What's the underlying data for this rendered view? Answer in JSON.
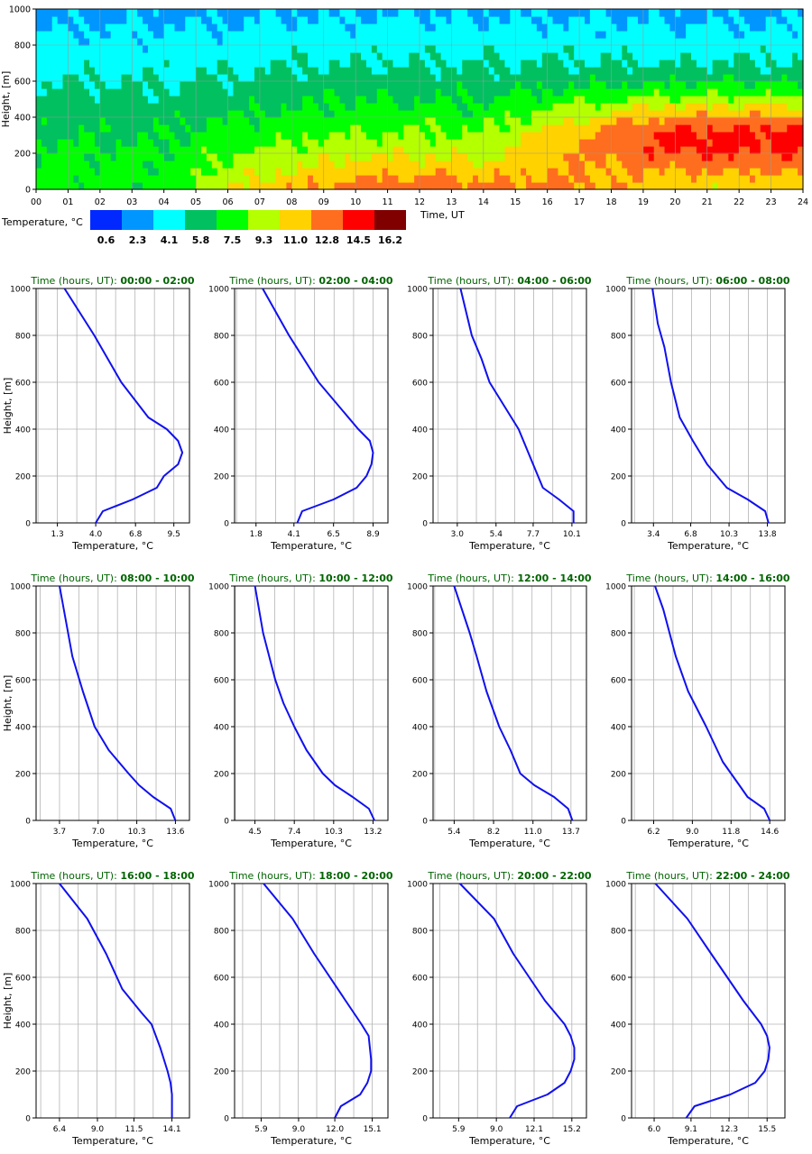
{
  "heatmap": {
    "ylabel": "Height, [m]",
    "xlabel": "Time, UT",
    "x_ticks": [
      "00",
      "01",
      "02",
      "03",
      "04",
      "05",
      "06",
      "07",
      "08",
      "09",
      "10",
      "11",
      "12",
      "13",
      "14",
      "15",
      "16",
      "17",
      "18",
      "19",
      "20",
      "21",
      "22",
      "23",
      "24"
    ],
    "y_ticks": [
      "0",
      "200",
      "400",
      "600",
      "800",
      "1000"
    ],
    "legend_label": "Temperature, °C",
    "legend_values": [
      "0.6",
      "2.3",
      "4.1",
      "5.8",
      "7.5",
      "9.3",
      "11.0",
      "12.8",
      "14.5",
      "16.2"
    ],
    "palette": [
      "#0028ff",
      "#0096ff",
      "#00ffff",
      "#00c060",
      "#00ff00",
      "#b4ff00",
      "#ffd200",
      "#ff6e1e",
      "#ff0000",
      "#800000"
    ]
  },
  "chart_data": [
    {
      "type": "line",
      "title_prefix": "Time (hours, UT)",
      "title_range": "00:00 - 02:00",
      "xlabel": "Temperature, °C",
      "ylabel": "Height, [m]",
      "x_ticks": [
        "1.3",
        "4.0",
        "6.8",
        "9.5"
      ],
      "xlim": [
        -0.2,
        10.6
      ],
      "ylim": [
        0,
        1000
      ],
      "series": [
        {
          "x": [
            4.0,
            4.5,
            6.6,
            8.3,
            8.8,
            9.8,
            10.1,
            9.8,
            9.0,
            7.7,
            5.8,
            3.9,
            1.8
          ],
          "y": [
            0,
            50,
            100,
            150,
            200,
            250,
            300,
            350,
            400,
            450,
            600,
            800,
            1000
          ]
        }
      ]
    },
    {
      "type": "line",
      "title_prefix": "Time (hours, UT)",
      "title_range": "02:00 - 04:00",
      "xlabel": "Temperature, °C",
      "ylabel": "Height, [m]",
      "x_ticks": [
        "1.8",
        "4.1",
        "6.5",
        "8.9"
      ],
      "xlim": [
        0.5,
        9.8
      ],
      "ylim": [
        0,
        1000
      ],
      "series": [
        {
          "x": [
            4.3,
            4.6,
            6.5,
            7.9,
            8.5,
            8.8,
            8.9,
            8.7,
            8.0,
            5.6,
            3.8,
            2.2
          ],
          "y": [
            0,
            50,
            100,
            150,
            200,
            250,
            300,
            350,
            400,
            600,
            800,
            1000
          ]
        }
      ]
    },
    {
      "type": "line",
      "title_prefix": "Time (hours, UT)",
      "title_range": "04:00 - 06:00",
      "xlabel": "Temperature, °C",
      "ylabel": "Height, [m]",
      "x_ticks": [
        "3.0",
        "5.4",
        "7.7",
        "10.1"
      ],
      "xlim": [
        1.5,
        11.0
      ],
      "ylim": [
        0,
        1000
      ],
      "series": [
        {
          "x": [
            10.2,
            10.2,
            9.3,
            8.3,
            7.7,
            6.8,
            5.9,
            5.0,
            4.5,
            3.9,
            3.2
          ],
          "y": [
            0,
            50,
            100,
            150,
            250,
            400,
            500,
            600,
            700,
            800,
            1000
          ]
        }
      ]
    },
    {
      "type": "line",
      "title_prefix": "Time (hours, UT)",
      "title_range": "06:00 - 08:00",
      "xlabel": "Temperature, °C",
      "ylabel": "Height, [m]",
      "x_ticks": [
        "3.4",
        "6.8",
        "10.3",
        "13.8"
      ],
      "xlim": [
        1.4,
        15.4
      ],
      "ylim": [
        0,
        1000
      ],
      "series": [
        {
          "x": [
            13.9,
            13.6,
            12.0,
            10.1,
            8.3,
            7.0,
            5.8,
            5.0,
            4.4,
            3.8,
            3.3
          ],
          "y": [
            0,
            50,
            100,
            150,
            250,
            350,
            450,
            600,
            750,
            850,
            1000
          ]
        }
      ]
    },
    {
      "type": "line",
      "title_prefix": "Time (hours, UT)",
      "title_range": "08:00 - 10:00",
      "xlabel": "Temperature, °C",
      "ylabel": "Height, [m]",
      "x_ticks": [
        "3.7",
        "7.0",
        "10.3",
        "13.6"
      ],
      "xlim": [
        1.7,
        14.8
      ],
      "ylim": [
        0,
        1000
      ],
      "series": [
        {
          "x": [
            13.6,
            13.2,
            11.7,
            10.5,
            9.6,
            7.9,
            6.7,
            5.7,
            4.8,
            3.7
          ],
          "y": [
            0,
            50,
            100,
            150,
            200,
            300,
            400,
            550,
            700,
            1000
          ]
        }
      ]
    },
    {
      "type": "line",
      "title_prefix": "Time (hours, UT)",
      "title_range": "10:00 - 12:00",
      "xlabel": "Temperature, °C",
      "ylabel": "Height, [m]",
      "x_ticks": [
        "4.5",
        "7.4",
        "10.3",
        "13.2"
      ],
      "xlim": [
        3.0,
        14.3
      ],
      "ylim": [
        0,
        1000
      ],
      "series": [
        {
          "x": [
            13.3,
            12.9,
            11.7,
            10.4,
            9.5,
            8.3,
            7.4,
            6.6,
            6.0,
            5.1,
            4.5
          ],
          "y": [
            0,
            50,
            100,
            150,
            200,
            300,
            400,
            500,
            600,
            800,
            1000
          ]
        }
      ]
    },
    {
      "type": "line",
      "title_prefix": "Time (hours, UT)",
      "title_range": "12:00 - 14:00",
      "xlabel": "Temperature, °C",
      "ylabel": "Height, [m]",
      "x_ticks": [
        "5.4",
        "8.2",
        "11.0",
        "13.7"
      ],
      "xlim": [
        3.9,
        14.8
      ],
      "ylim": [
        0,
        1000
      ],
      "series": [
        {
          "x": [
            13.8,
            13.5,
            12.5,
            11.1,
            10.1,
            9.4,
            8.6,
            7.7,
            7.0,
            6.5,
            5.4
          ],
          "y": [
            0,
            50,
            100,
            150,
            200,
            300,
            400,
            550,
            700,
            800,
            1000
          ]
        }
      ]
    },
    {
      "type": "line",
      "title_prefix": "Time (hours, UT)",
      "title_range": "14:00 - 16:00",
      "xlabel": "Temperature, °C",
      "ylabel": "Height, [m]",
      "x_ticks": [
        "6.2",
        "9.0",
        "11.8",
        "14.6"
      ],
      "xlim": [
        4.6,
        15.7
      ],
      "ylim": [
        0,
        1000
      ],
      "series": [
        {
          "x": [
            14.6,
            14.2,
            13.0,
            12.4,
            11.2,
            10.0,
            8.7,
            7.8,
            6.9,
            6.3
          ],
          "y": [
            0,
            50,
            100,
            150,
            250,
            400,
            550,
            700,
            900,
            1000
          ]
        }
      ]
    },
    {
      "type": "line",
      "title_prefix": "Time (hours, UT)",
      "title_range": "16:00 - 18:00",
      "xlabel": "Temperature, °C",
      "ylabel": "Height, [m]",
      "x_ticks": [
        "6.4",
        "9.0",
        "11.5",
        "14.1"
      ],
      "xlim": [
        4.8,
        15.3
      ],
      "ylim": [
        0,
        1000
      ],
      "series": [
        {
          "x": [
            14.1,
            14.1,
            14.0,
            13.8,
            13.3,
            12.7,
            12.0,
            10.7,
            9.6,
            8.3,
            6.4
          ],
          "y": [
            0,
            100,
            150,
            200,
            300,
            400,
            450,
            550,
            700,
            850,
            1000
          ]
        }
      ]
    },
    {
      "type": "line",
      "title_prefix": "Time (hours, UT)",
      "title_range": "18:00 - 20:00",
      "xlabel": "Temperature, °C",
      "ylabel": "Height, [m]",
      "x_ticks": [
        "5.9",
        "9.0",
        "12.0",
        "15.1"
      ],
      "xlim": [
        3.7,
        16.4
      ],
      "ylim": [
        0,
        1000
      ],
      "series": [
        {
          "x": [
            12.0,
            12.5,
            14.1,
            14.7,
            15.0,
            15.0,
            14.8,
            14.2,
            12.9,
            10.3,
            8.5,
            6.1
          ],
          "y": [
            0,
            50,
            100,
            150,
            200,
            250,
            350,
            400,
            500,
            700,
            850,
            1000
          ]
        }
      ]
    },
    {
      "type": "line",
      "title_prefix": "Time (hours, UT)",
      "title_range": "20:00 - 22:00",
      "xlabel": "Temperature, °C",
      "ylabel": "Height, [m]",
      "x_ticks": [
        "5.9",
        "9.0",
        "12.1",
        "15.2"
      ],
      "xlim": [
        3.8,
        16.4
      ],
      "ylim": [
        0,
        1000
      ],
      "series": [
        {
          "x": [
            10.1,
            10.7,
            13.2,
            14.6,
            15.1,
            15.4,
            15.4,
            15.1,
            14.6,
            13.0,
            10.4,
            8.8,
            6.0
          ],
          "y": [
            0,
            50,
            100,
            150,
            200,
            250,
            300,
            350,
            400,
            500,
            700,
            850,
            1000
          ]
        }
      ]
    },
    {
      "type": "line",
      "title_prefix": "Time (hours, UT)",
      "title_range": "22:00 - 24:00",
      "xlabel": "Temperature, °C",
      "ylabel": "Height, [m]",
      "x_ticks": [
        "6.0",
        "9.1",
        "12.3",
        "15.5"
      ],
      "xlim": [
        4.1,
        17.0
      ],
      "ylim": [
        0,
        1000
      ],
      "series": [
        {
          "x": [
            8.7,
            9.4,
            12.4,
            14.5,
            15.3,
            15.6,
            15.7,
            15.5,
            15.0,
            13.5,
            10.8,
            8.8,
            6.1
          ],
          "y": [
            0,
            50,
            100,
            150,
            200,
            250,
            300,
            350,
            400,
            500,
            700,
            850,
            1000
          ]
        }
      ]
    }
  ]
}
